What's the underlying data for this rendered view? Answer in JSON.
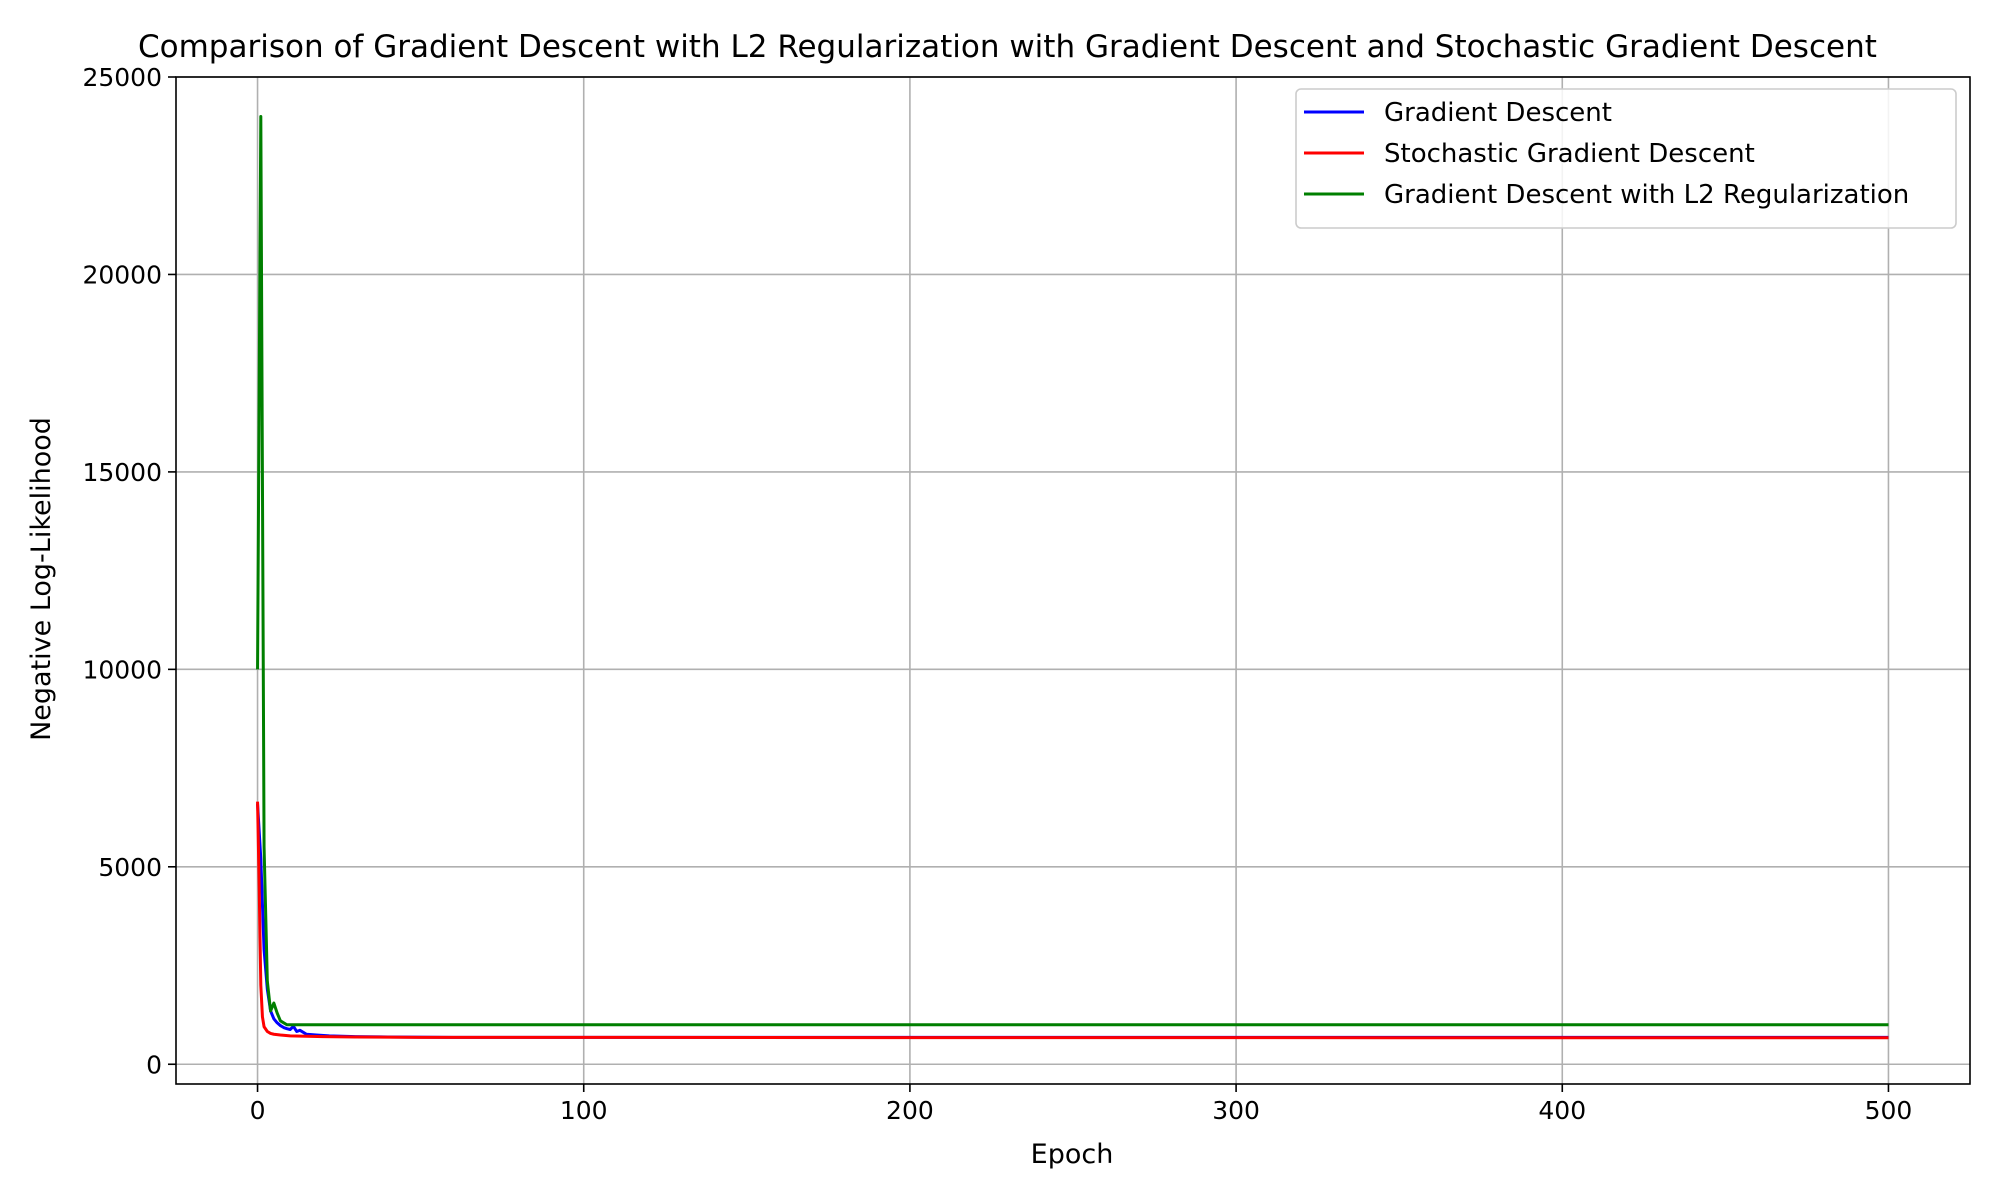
{
  "chart_data": {
    "type": "line",
    "title": "Comparison of Gradient Descent with L2 Regularization with Gradient Descent and Stochastic Gradient Descent",
    "xlabel": "Epoch",
    "ylabel": "Negative Log-Likelihood",
    "xlim": [
      -25,
      525
    ],
    "ylim": [
      -500,
      25000
    ],
    "xticks": [
      0,
      100,
      200,
      300,
      400,
      500
    ],
    "yticks": [
      0,
      5000,
      10000,
      15000,
      20000,
      25000
    ],
    "grid": true,
    "legend_position": "top-right",
    "series": [
      {
        "name": "Gradient Descent",
        "color": "#0000ff",
        "x": [
          0,
          1,
          2,
          3,
          4,
          5,
          6,
          7,
          8,
          9,
          10,
          11,
          12,
          13,
          15,
          18,
          22,
          30,
          40,
          60,
          100,
          200,
          300,
          400,
          500
        ],
        "y": [
          6600,
          5200,
          2900,
          1900,
          1350,
          1150,
          1050,
          980,
          930,
          900,
          880,
          960,
          830,
          860,
          760,
          740,
          720,
          700,
          690,
          680,
          680,
          680,
          680,
          680,
          680
        ]
      },
      {
        "name": "Stochastic Gradient Descent",
        "color": "#ff0000",
        "x": [
          0,
          0.5,
          1,
          1.5,
          2,
          3,
          4,
          5,
          7,
          10,
          15,
          20,
          30,
          50,
          100,
          200,
          300,
          400,
          500
        ],
        "y": [
          6650,
          4500,
          2000,
          1200,
          950,
          830,
          780,
          760,
          740,
          720,
          710,
          700,
          690,
          680,
          680,
          675,
          675,
          670,
          670
        ]
      },
      {
        "name": "Gradient Descent with L2 Regularization",
        "color": "#007f00",
        "x": [
          0,
          1,
          2,
          3,
          4,
          5,
          6,
          7,
          8,
          9,
          10,
          12,
          15,
          20,
          50,
          100,
          200,
          300,
          400,
          500
        ],
        "y": [
          10000,
          24000,
          5500,
          2100,
          1350,
          1550,
          1300,
          1100,
          1050,
          1000,
          1000,
          1000,
          1000,
          1000,
          1000,
          1000,
          1000,
          1000,
          1000,
          1000
        ]
      }
    ]
  }
}
